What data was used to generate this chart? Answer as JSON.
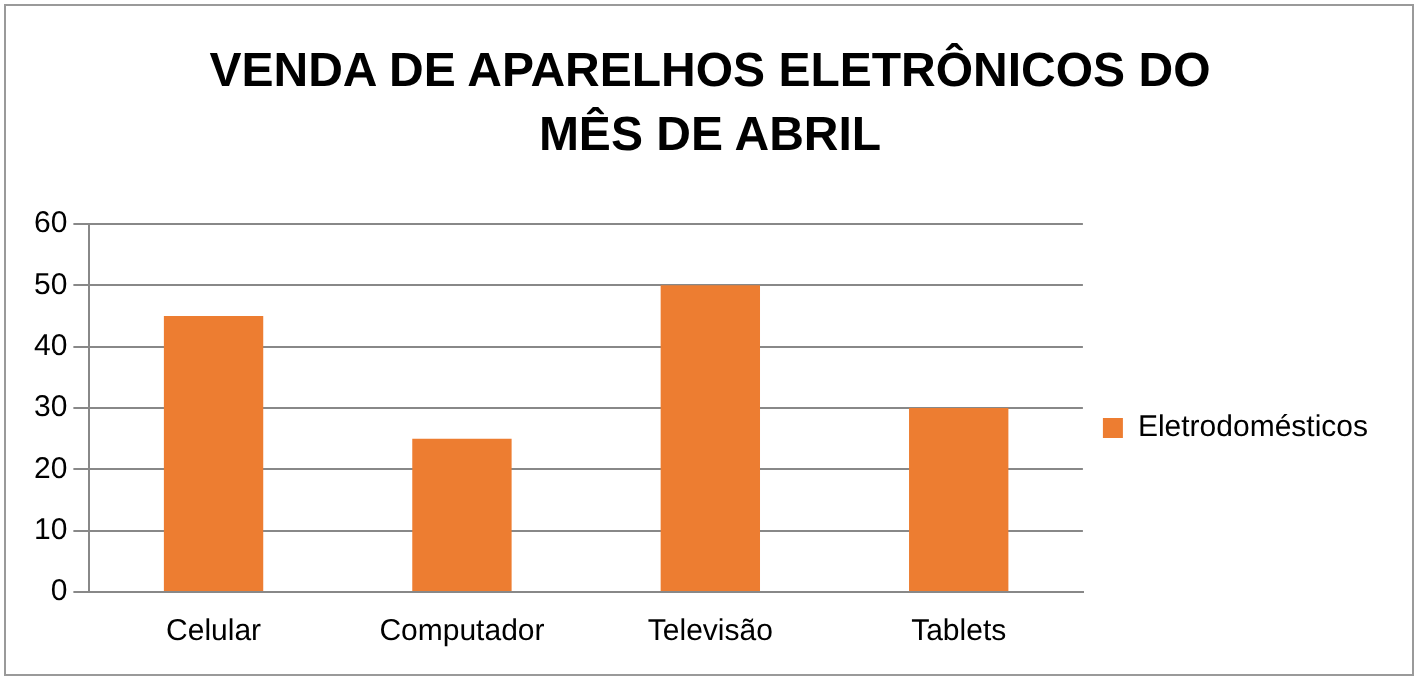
{
  "chart_data": {
    "type": "bar",
    "title": "VENDA DE APARELHOS ELETRÔNICOS DO MÊS DE ABRIL",
    "categories": [
      "Celular",
      "Computador",
      "Televisão",
      "Tablets"
    ],
    "series": [
      {
        "name": "Eletrodomésticos",
        "color": "#ed7d31",
        "values": [
          45,
          25,
          50,
          30
        ]
      }
    ],
    "ylim": [
      0,
      60
    ],
    "yticks": [
      0,
      10,
      20,
      30,
      40,
      50,
      60
    ],
    "grid": "y",
    "legend": "right"
  }
}
